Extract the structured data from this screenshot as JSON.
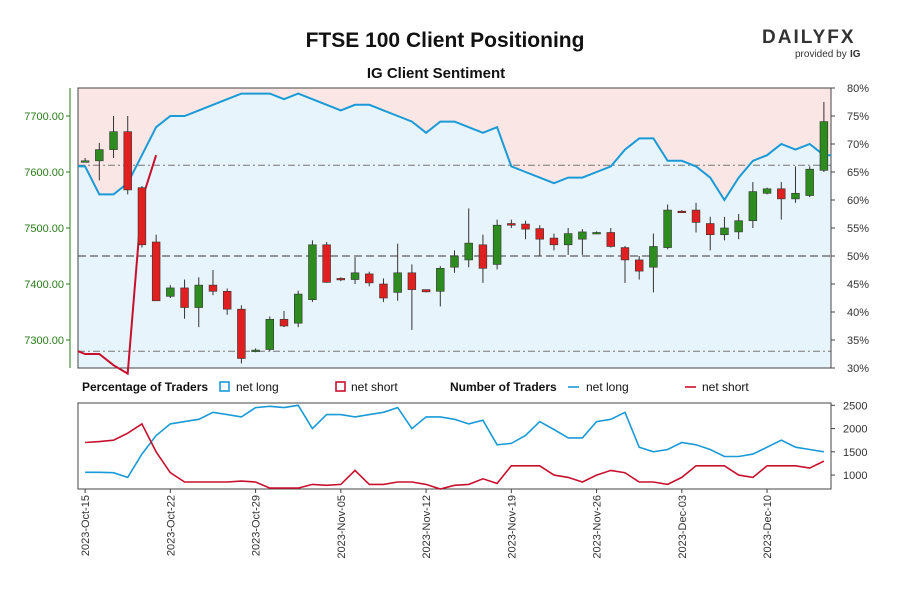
{
  "title": "FTSE 100 Client Positioning",
  "subtitle": "IG Client Sentiment",
  "logo": {
    "main": "DAILYFX",
    "sub": "provided by",
    "brand": "IG"
  },
  "colors": {
    "up": "#2e8b1f",
    "down": "#e02020",
    "net_long": "#1a9ad6",
    "net_short": "#c8102e",
    "long_fill": "#e8f4fb",
    "short_fill": "#fbe6e6",
    "price_axis": "#2a7a1a"
  },
  "chart_data": [
    {
      "type": "candlestick",
      "name": "price",
      "y_left_ticks": [
        "7300.00",
        "7400.00",
        "7500.00",
        "7600.00",
        "7700.00"
      ],
      "y_left_lim": [
        7250,
        7750
      ],
      "y_right_ticks": [
        "30%",
        "35%",
        "40%",
        "45%",
        "50%",
        "55%",
        "60%",
        "65%",
        "70%",
        "75%",
        "80%"
      ],
      "y_right_lim": [
        30,
        80
      ],
      "ref_lines": [
        7612,
        7450,
        7280
      ],
      "candles": [
        {
          "o": 7620,
          "h": 7625,
          "l": 7618,
          "c": 7620
        },
        {
          "o": 7620,
          "h": 7652,
          "l": 7585,
          "c": 7640
        },
        {
          "o": 7640,
          "h": 7700,
          "l": 7625,
          "c": 7672
        },
        {
          "o": 7672,
          "h": 7700,
          "l": 7560,
          "c": 7568
        },
        {
          "o": 7572,
          "h": 7575,
          "l": 7465,
          "c": 7470
        },
        {
          "o": 7475,
          "h": 7488,
          "l": 7370,
          "c": 7370
        },
        {
          "o": 7378,
          "h": 7398,
          "l": 7375,
          "c": 7393
        },
        {
          "o": 7393,
          "h": 7408,
          "l": 7338,
          "c": 7358
        },
        {
          "o": 7358,
          "h": 7412,
          "l": 7323,
          "c": 7398
        },
        {
          "o": 7398,
          "h": 7425,
          "l": 7380,
          "c": 7387
        },
        {
          "o": 7387,
          "h": 7392,
          "l": 7345,
          "c": 7355
        },
        {
          "o": 7355,
          "h": 7362,
          "l": 7258,
          "c": 7267
        },
        {
          "o": 7280,
          "h": 7285,
          "l": 7278,
          "c": 7282
        },
        {
          "o": 7283,
          "h": 7342,
          "l": 7280,
          "c": 7337
        },
        {
          "o": 7337,
          "h": 7352,
          "l": 7323,
          "c": 7325
        },
        {
          "o": 7330,
          "h": 7388,
          "l": 7323,
          "c": 7382
        },
        {
          "o": 7372,
          "h": 7478,
          "l": 7368,
          "c": 7470
        },
        {
          "o": 7470,
          "h": 7475,
          "l": 7402,
          "c": 7403
        },
        {
          "o": 7410,
          "h": 7412,
          "l": 7405,
          "c": 7408
        },
        {
          "o": 7408,
          "h": 7448,
          "l": 7400,
          "c": 7420
        },
        {
          "o": 7418,
          "h": 7422,
          "l": 7396,
          "c": 7402
        },
        {
          "o": 7400,
          "h": 7410,
          "l": 7368,
          "c": 7375
        },
        {
          "o": 7385,
          "h": 7472,
          "l": 7370,
          "c": 7420
        },
        {
          "o": 7420,
          "h": 7435,
          "l": 7318,
          "c": 7390
        },
        {
          "o": 7390,
          "h": 7390,
          "l": 7385,
          "c": 7386
        },
        {
          "o": 7387,
          "h": 7432,
          "l": 7360,
          "c": 7428
        },
        {
          "o": 7430,
          "h": 7460,
          "l": 7420,
          "c": 7450
        },
        {
          "o": 7443,
          "h": 7535,
          "l": 7430,
          "c": 7473
        },
        {
          "o": 7470,
          "h": 7488,
          "l": 7402,
          "c": 7428
        },
        {
          "o": 7435,
          "h": 7515,
          "l": 7426,
          "c": 7505
        },
        {
          "o": 7508,
          "h": 7515,
          "l": 7500,
          "c": 7505
        },
        {
          "o": 7507,
          "h": 7513,
          "l": 7480,
          "c": 7498
        },
        {
          "o": 7499,
          "h": 7505,
          "l": 7450,
          "c": 7480
        },
        {
          "o": 7482,
          "h": 7490,
          "l": 7460,
          "c": 7470
        },
        {
          "o": 7470,
          "h": 7500,
          "l": 7452,
          "c": 7490
        },
        {
          "o": 7480,
          "h": 7498,
          "l": 7452,
          "c": 7493
        },
        {
          "o": 7492,
          "h": 7494,
          "l": 7489,
          "c": 7492
        },
        {
          "o": 7492,
          "h": 7500,
          "l": 7465,
          "c": 7467
        },
        {
          "o": 7465,
          "h": 7468,
          "l": 7402,
          "c": 7443
        },
        {
          "o": 7443,
          "h": 7450,
          "l": 7408,
          "c": 7423
        },
        {
          "o": 7430,
          "h": 7490,
          "l": 7385,
          "c": 7467
        },
        {
          "o": 7465,
          "h": 7542,
          "l": 7462,
          "c": 7532
        },
        {
          "o": 7530,
          "h": 7532,
          "l": 7527,
          "c": 7528
        },
        {
          "o": 7532,
          "h": 7545,
          "l": 7492,
          "c": 7510
        },
        {
          "o": 7508,
          "h": 7520,
          "l": 7460,
          "c": 7488
        },
        {
          "o": 7488,
          "h": 7520,
          "l": 7478,
          "c": 7500
        },
        {
          "o": 7493,
          "h": 7525,
          "l": 7480,
          "c": 7513
        },
        {
          "o": 7513,
          "h": 7582,
          "l": 7500,
          "c": 7565
        },
        {
          "o": 7562,
          "h": 7572,
          "l": 7560,
          "c": 7570
        },
        {
          "o": 7570,
          "h": 7582,
          "l": 7515,
          "c": 7552
        },
        {
          "o": 7552,
          "h": 7610,
          "l": 7545,
          "c": 7562
        },
        {
          "o": 7558,
          "h": 7610,
          "l": 7555,
          "c": 7605
        },
        {
          "o": 7603,
          "h": 7725,
          "l": 7600,
          "c": 7690
        }
      ],
      "x_date_labels": [
        {
          "index": 0,
          "label": "2023-Oct-15"
        },
        {
          "index": 6,
          "label": "2023-Oct-22"
        },
        {
          "index": 12,
          "label": "2023-Oct-29"
        },
        {
          "index": 18,
          "label": "2023-Nov-05"
        },
        {
          "index": 24,
          "label": "2023-Nov-12"
        },
        {
          "index": 30,
          "label": "2023-Nov-19"
        },
        {
          "index": 36,
          "label": "2023-Nov-26"
        },
        {
          "index": 42,
          "label": "2023-Dec-03"
        },
        {
          "index": 48,
          "label": "2023-Dec-10"
        }
      ],
      "net_long_pct": [
        66,
        61,
        61,
        63,
        68,
        73,
        75,
        75,
        76,
        77,
        78,
        79,
        79,
        79,
        78,
        79,
        78,
        77,
        76,
        77,
        77,
        76,
        75,
        74,
        72,
        74,
        74,
        73,
        72,
        73,
        66,
        65,
        64,
        63,
        64,
        64,
        65,
        66,
        69,
        71,
        71,
        67,
        67,
        66,
        64,
        60,
        64,
        67,
        68,
        70,
        69,
        70,
        68
      ],
      "net_long_pct_offset": -1
    },
    {
      "type": "line",
      "name": "traders",
      "y_ticks": [
        "1000",
        "1500",
        "2000",
        "2500"
      ],
      "y_lim": [
        700,
        2550
      ],
      "legend_headers": [
        "Percentage of Traders",
        "Number of Traders"
      ],
      "legend_labels": [
        "net long",
        "net short",
        "net long",
        "net short"
      ],
      "series": [
        {
          "name": "net long",
          "values": [
            1060,
            1060,
            1050,
            950,
            1450,
            1850,
            2100,
            2150,
            2200,
            2350,
            2300,
            2250,
            2450,
            2480,
            2450,
            2500,
            2000,
            2300,
            2300,
            2250,
            2300,
            2350,
            2450,
            2000,
            2250,
            2250,
            2200,
            2100,
            2180,
            1650,
            1680,
            1850,
            2150,
            1980,
            1800,
            1800,
            2150,
            2200,
            2350,
            1600,
            1500,
            1550,
            1700,
            1650,
            1550,
            1400,
            1400,
            1450,
            1600,
            1750,
            1600,
            1550,
            1500
          ]
        },
        {
          "name": "net short",
          "values": [
            1700,
            1720,
            1750,
            1900,
            2100,
            1500,
            1050,
            850,
            850,
            850,
            850,
            870,
            850,
            720,
            720,
            720,
            800,
            780,
            800,
            1100,
            800,
            800,
            850,
            850,
            800,
            700,
            780,
            800,
            920,
            820,
            1200,
            1200,
            1200,
            1000,
            950,
            850,
            1000,
            1100,
            1050,
            850,
            850,
            800,
            950,
            1200,
            1200,
            1200,
            1000,
            950,
            1200,
            1200,
            1200,
            1150,
            1300
          ]
        }
      ]
    }
  ]
}
